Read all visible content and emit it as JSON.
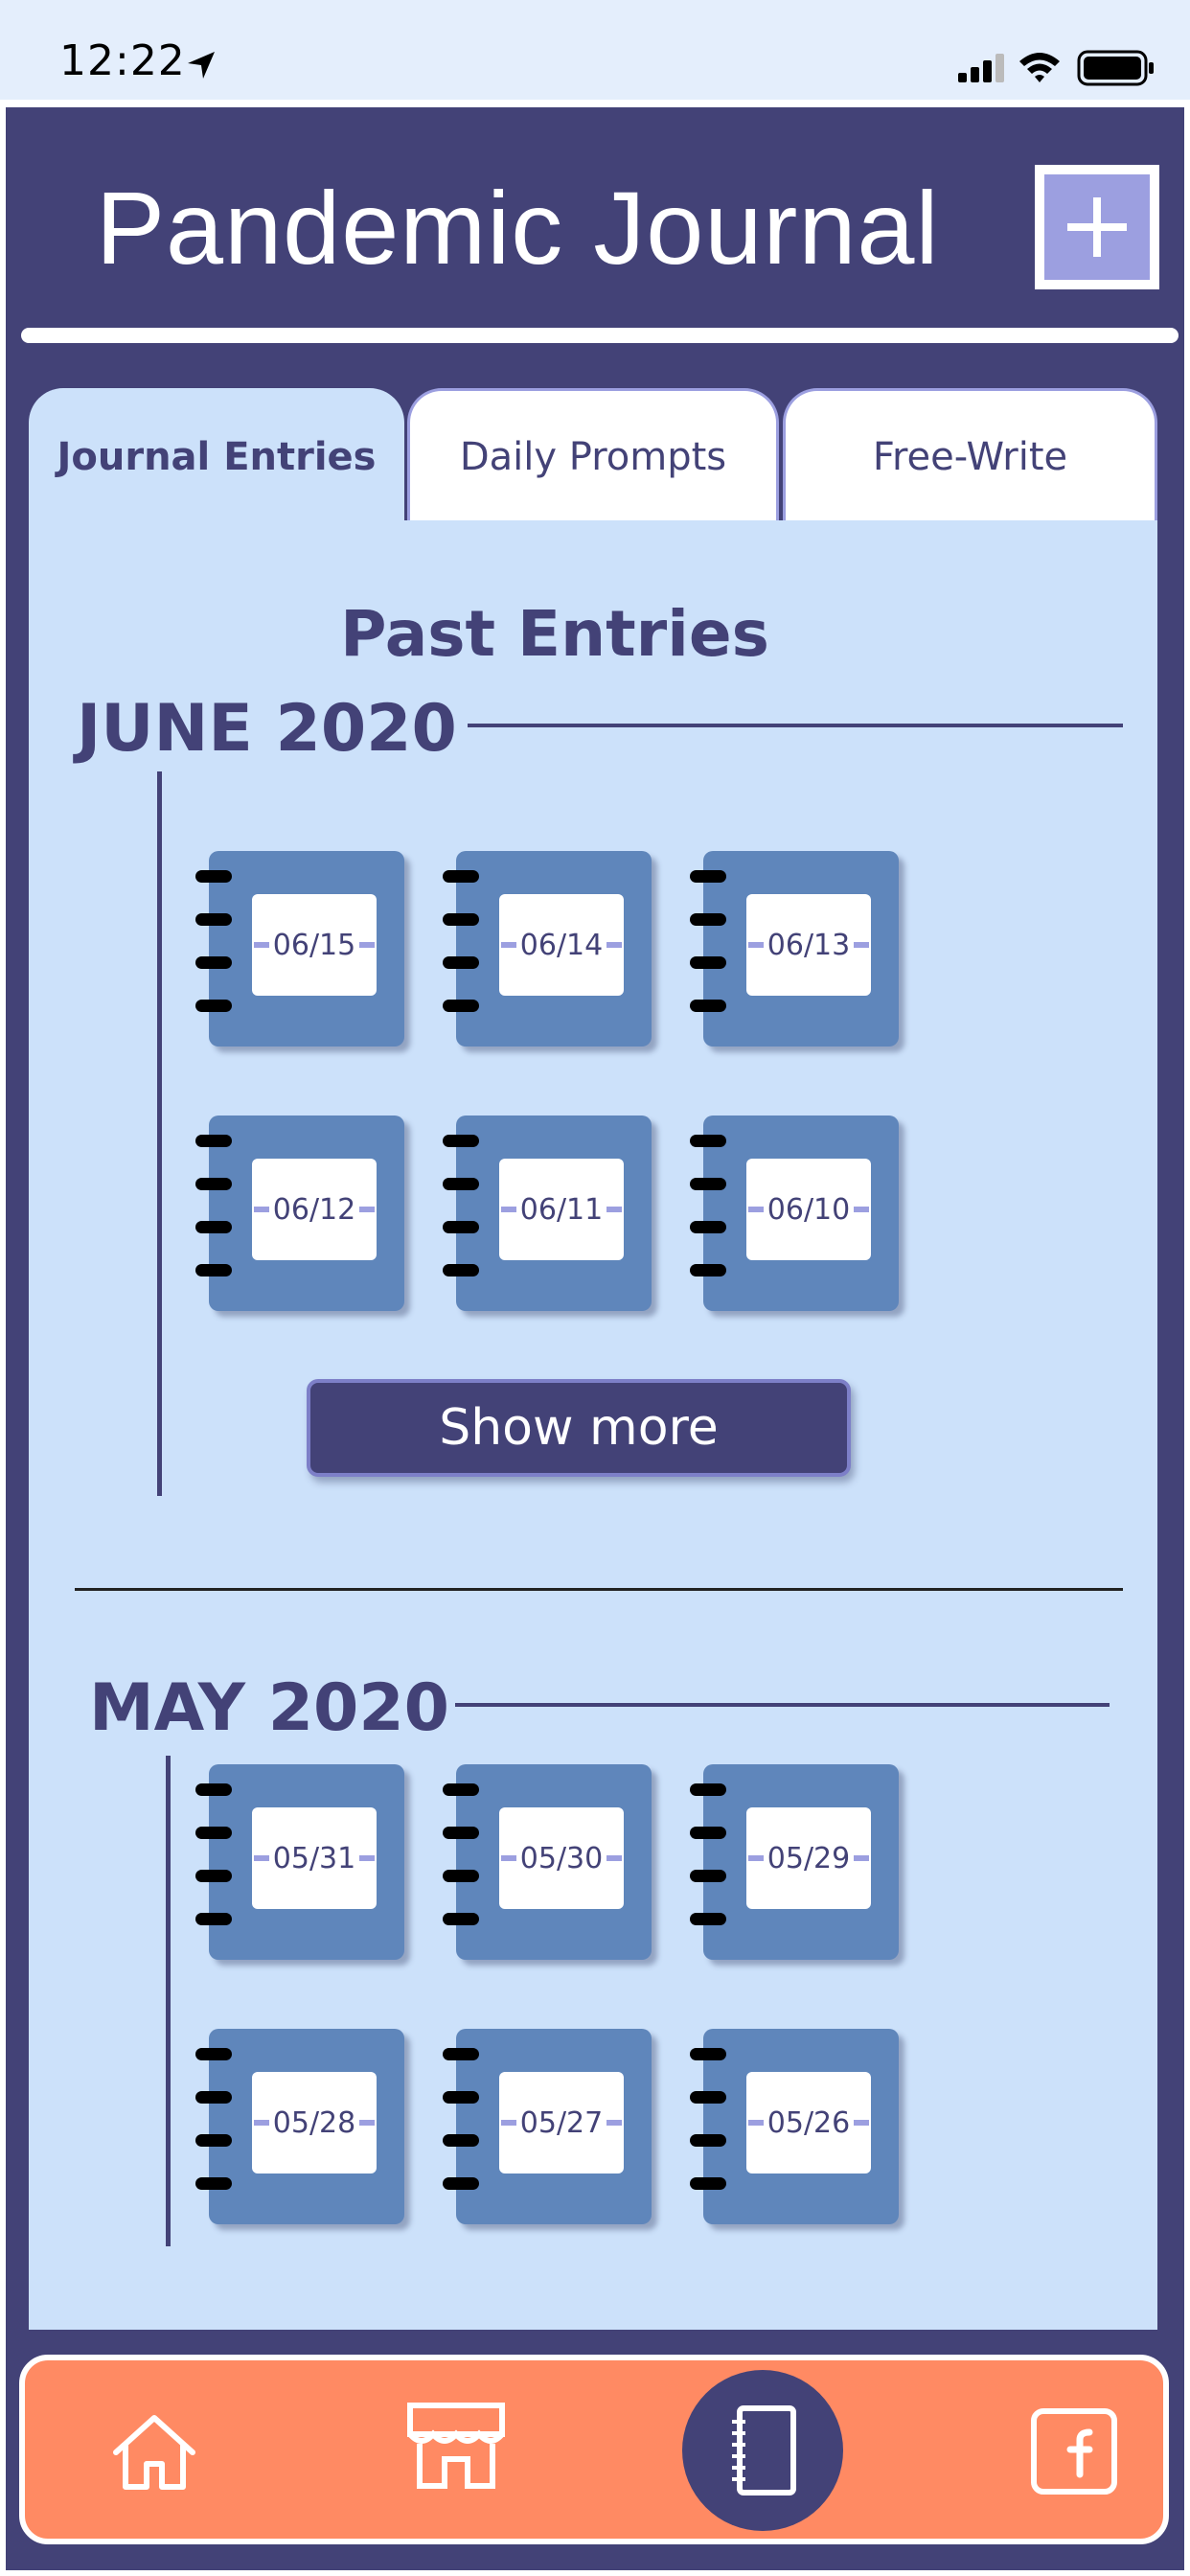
{
  "status_bar": {
    "time": "12:22"
  },
  "header": {
    "title": "Pandemic Journal",
    "add_button_icon": "plus-icon"
  },
  "tabs": [
    {
      "label": "Journal Entries",
      "active": true
    },
    {
      "label": "Daily Prompts",
      "active": false
    },
    {
      "label": "Free-Write",
      "active": false
    }
  ],
  "content": {
    "title": "Past Entries",
    "months": [
      {
        "label": "JUNE 2020",
        "entries": [
          "06/15",
          "06/14",
          "06/13",
          "06/12",
          "06/11",
          "06/10"
        ],
        "show_more_label": "Show more"
      },
      {
        "label": "MAY 2020",
        "entries": [
          "05/31",
          "05/30",
          "05/29",
          "05/28",
          "05/27",
          "05/26"
        ]
      }
    ]
  },
  "bottom_nav": [
    {
      "icon": "home-icon"
    },
    {
      "icon": "storefront-icon"
    },
    {
      "icon": "journal-notebook-icon",
      "active": true
    },
    {
      "icon": "facebook-icon"
    }
  ],
  "colors": {
    "primary": "#434277",
    "accent": "#9c9fe0",
    "panel": "#cce1fa",
    "journal_cover": "#5f86bb",
    "nav_background": "#ff8a63"
  }
}
